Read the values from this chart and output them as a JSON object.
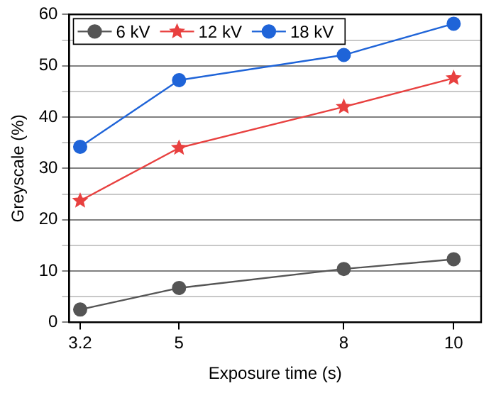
{
  "chart_data": {
    "type": "line",
    "xlabel": "Exposure time (s)",
    "ylabel": "Greyscale (%)",
    "x": [
      3.2,
      5,
      8,
      10
    ],
    "xlim": [
      3,
      10.5
    ],
    "xticks": [
      3.2,
      5,
      8,
      10
    ],
    "ylim": [
      0,
      60
    ],
    "yticks": [
      0,
      {
        "value": 5,
        "label": null
      },
      10,
      {
        "value": 15,
        "label": null
      },
      20,
      {
        "value": 25,
        "label": null
      },
      30,
      {
        "value": 35,
        "label": null
      },
      40,
      {
        "value": 45,
        "label": null
      },
      50,
      {
        "value": 55,
        "label": null
      },
      60
    ],
    "grid": "y",
    "legend": "top left",
    "line_style": "solid",
    "series": [
      {
        "name": "6 kV",
        "color": "#555555",
        "marker": "circle",
        "values": [
          2.5,
          6.7,
          10.4,
          12.3
        ]
      },
      {
        "name": "12 kV",
        "color": "#e8403f",
        "marker": "star",
        "values": [
          23.7,
          34,
          42,
          47.6
        ]
      },
      {
        "name": "18 kV",
        "color": "#1f64d8",
        "marker": "circle",
        "values": [
          34.2,
          47.2,
          52.1,
          58.2
        ]
      }
    ]
  }
}
